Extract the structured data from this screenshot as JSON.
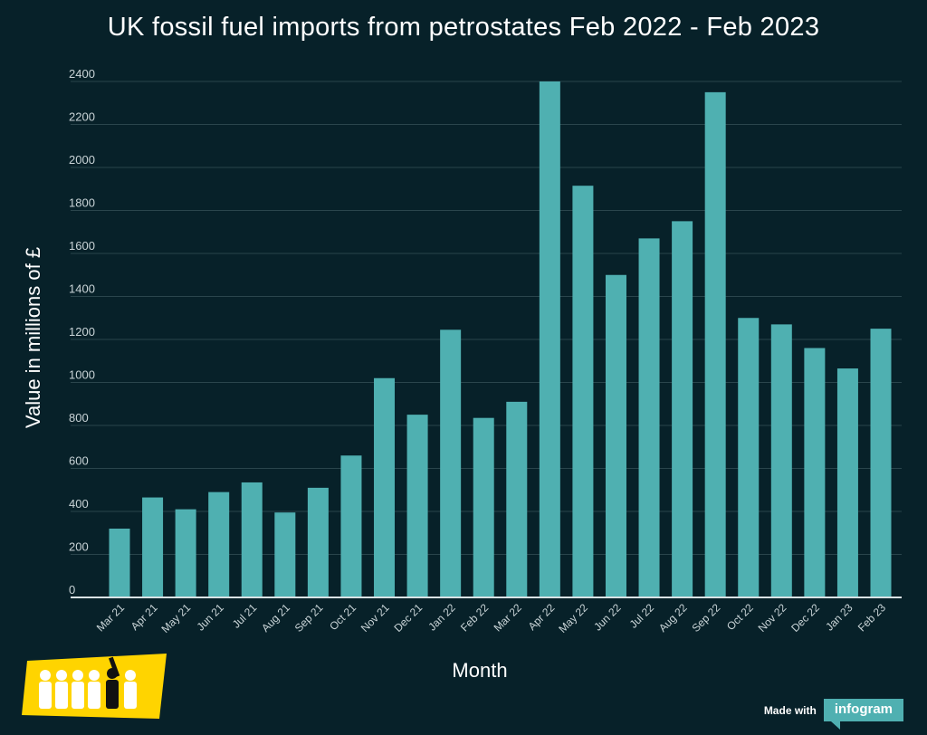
{
  "chart_data": {
    "type": "bar",
    "title": "UK fossil fuel imports from petrostates Feb 2022 - Feb 2023",
    "xlabel": "Month",
    "ylabel": "Value in millions of £",
    "categories": [
      "Mar 21",
      "Apr 21",
      "May 21",
      "Jun 21",
      "Jul 21",
      "Aug 21",
      "Sep 21",
      "Oct 21",
      "Nov 21",
      "Dec 21",
      "Jan 22",
      "Feb 22",
      "Mar 22",
      "Apr 22",
      "May 22",
      "Jun 22",
      "Jul 22",
      "Aug 22",
      "Sep 22",
      "Oct 22",
      "Nov 22",
      "Dec 22",
      "Jan 23",
      "Feb 23"
    ],
    "values": [
      320,
      465,
      410,
      490,
      535,
      395,
      510,
      660,
      1020,
      850,
      1245,
      835,
      910,
      2400,
      1915,
      1500,
      1670,
      1750,
      2350,
      1300,
      1270,
      1160,
      1065,
      1250
    ],
    "yticks": [
      0,
      200,
      400,
      600,
      800,
      1000,
      1200,
      1400,
      1600,
      1800,
      2000,
      2200,
      2400
    ],
    "ylim": [
      0,
      2400
    ],
    "grid": true,
    "bar_color": "#4fb0b1"
  },
  "colors": {
    "background": "#072129",
    "bar": "#4fb0b1",
    "gridline": "#2a454c",
    "baseline": "#d9e2e4",
    "logo_yellow": "#ffd400"
  },
  "footer": {
    "made_with": "Made with",
    "brand": "infogram"
  }
}
